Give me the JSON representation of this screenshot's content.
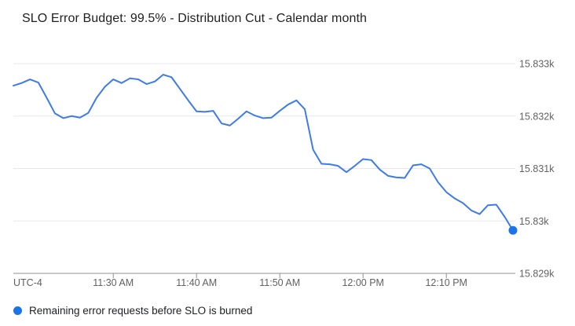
{
  "title": "SLO Error Budget: 99.5% - Distribution Cut - Calendar month",
  "legend": {
    "label": "Remaining error requests before SLO is burned"
  },
  "chart_data": {
    "type": "line",
    "title": "SLO Error Budget: 99.5% - Distribution Cut - Calendar month",
    "series_name": "Remaining error requests before SLO is burned",
    "utc_label": "UTC-4",
    "x_times": [
      "11:18 AM",
      "11:19 AM",
      "11:20 AM",
      "11:21 AM",
      "11:22 AM",
      "11:23 AM",
      "11:24 AM",
      "11:25 AM",
      "11:26 AM",
      "11:27 AM",
      "11:28 AM",
      "11:29 AM",
      "11:30 AM",
      "11:31 AM",
      "11:32 AM",
      "11:33 AM",
      "11:34 AM",
      "11:35 AM",
      "11:36 AM",
      "11:37 AM",
      "11:38 AM",
      "11:39 AM",
      "11:40 AM",
      "11:41 AM",
      "11:42 AM",
      "11:43 AM",
      "11:44 AM",
      "11:45 AM",
      "11:46 AM",
      "11:47 AM",
      "11:48 AM",
      "11:49 AM",
      "11:50 AM",
      "11:51 AM",
      "11:52 AM",
      "11:53 AM",
      "11:54 AM",
      "11:55 AM",
      "11:56 AM",
      "11:57 AM",
      "11:58 AM",
      "11:59 AM",
      "12:00 PM",
      "12:01 PM",
      "12:02 PM",
      "12:03 PM",
      "12:04 PM",
      "12:05 PM",
      "12:06 PM",
      "12:07 PM",
      "12:08 PM",
      "12:09 PM",
      "12:10 PM",
      "12:11 PM",
      "12:12 PM",
      "12:13 PM",
      "12:14 PM",
      "12:15 PM",
      "12:16 PM",
      "12:17 PM",
      "12:18 PM"
    ],
    "values": [
      15832.58,
      15832.63,
      15832.7,
      15832.64,
      15832.35,
      15832.05,
      15831.96,
      15832.0,
      15831.97,
      15832.06,
      15832.35,
      15832.56,
      15832.7,
      15832.63,
      15832.72,
      15832.7,
      15832.61,
      15832.66,
      15832.79,
      15832.74,
      15832.52,
      15832.3,
      15832.09,
      15832.08,
      15832.1,
      15831.86,
      15831.82,
      15831.95,
      15832.09,
      15832.01,
      15831.96,
      15831.97,
      15832.1,
      15832.22,
      15832.3,
      15832.13,
      15831.36,
      15831.09,
      15831.08,
      15831.05,
      15830.93,
      15831.05,
      15831.18,
      15831.16,
      15830.98,
      15830.86,
      15830.83,
      15830.82,
      15831.06,
      15831.08,
      15831.0,
      15830.74,
      15830.55,
      15830.43,
      15830.34,
      15830.2,
      15830.13,
      15830.3,
      15830.31,
      15830.08,
      15829.82
    ],
    "x_ticks": [
      {
        "label": "11:30 AM",
        "time": "11:30 AM"
      },
      {
        "label": "11:40 AM",
        "time": "11:40 AM"
      },
      {
        "label": "11:50 AM",
        "time": "11:50 AM"
      },
      {
        "label": "12:00 PM",
        "time": "12:00 PM"
      },
      {
        "label": "12:10 PM",
        "time": "12:10 PM"
      }
    ],
    "y_ticks": [
      {
        "label": "15.833k",
        "value": 15833
      },
      {
        "label": "15.832k",
        "value": 15832
      },
      {
        "label": "15.831k",
        "value": 15831
      },
      {
        "label": "15.83k",
        "value": 15830
      },
      {
        "label": "15.829k",
        "value": 15829
      }
    ],
    "ylim": [
      15829,
      15833
    ],
    "legend_position": "bottom-left",
    "grid": true,
    "end_marker": true,
    "colors": {
      "line": "#3e7bea",
      "end_marker": "#1a73e8",
      "legend_dot": "#1a73e8",
      "gridline": "#e8e8e8",
      "axis_line": "#8f8f8f",
      "tick_text": "#616161",
      "title_text": "#212121",
      "background": "#ffffff"
    }
  }
}
